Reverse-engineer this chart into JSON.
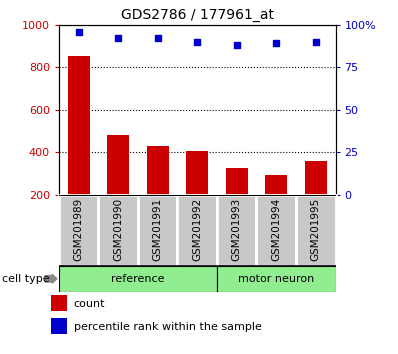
{
  "title": "GDS2786 / 177961_at",
  "samples": [
    "GSM201989",
    "GSM201990",
    "GSM201991",
    "GSM201992",
    "GSM201993",
    "GSM201994",
    "GSM201995"
  ],
  "counts": [
    855,
    480,
    430,
    405,
    325,
    293,
    358
  ],
  "percentiles": [
    96,
    92,
    92,
    90,
    88,
    89,
    90
  ],
  "n_ref": 4,
  "n_motor": 3,
  "bar_color": "#CC0000",
  "dot_color": "#0000CC",
  "left_axis_color": "#CC0000",
  "right_axis_color": "#0000BB",
  "ylim_left": [
    200,
    1000
  ],
  "ylim_right": [
    0,
    100
  ],
  "yticks_left": [
    200,
    400,
    600,
    800,
    1000
  ],
  "ytick_labels_left": [
    "200",
    "400",
    "600",
    "800",
    "1000"
  ],
  "yticks_right": [
    0,
    25,
    50,
    75,
    100
  ],
  "ytick_labels_right": [
    "0",
    "25",
    "50",
    "75",
    "100%"
  ],
  "legend_count_label": "count",
  "legend_pct_label": "percentile rank within the sample",
  "cell_type_label": "cell type",
  "sample_box_color": "#C8C8C8",
  "ref_color": "#90EE90",
  "motor_color": "#90EE90",
  "ref_label": "reference",
  "motor_label": "motor neuron",
  "title_fontsize": 10,
  "axis_fontsize": 8,
  "label_fontsize": 7.5,
  "group_fontsize": 8
}
